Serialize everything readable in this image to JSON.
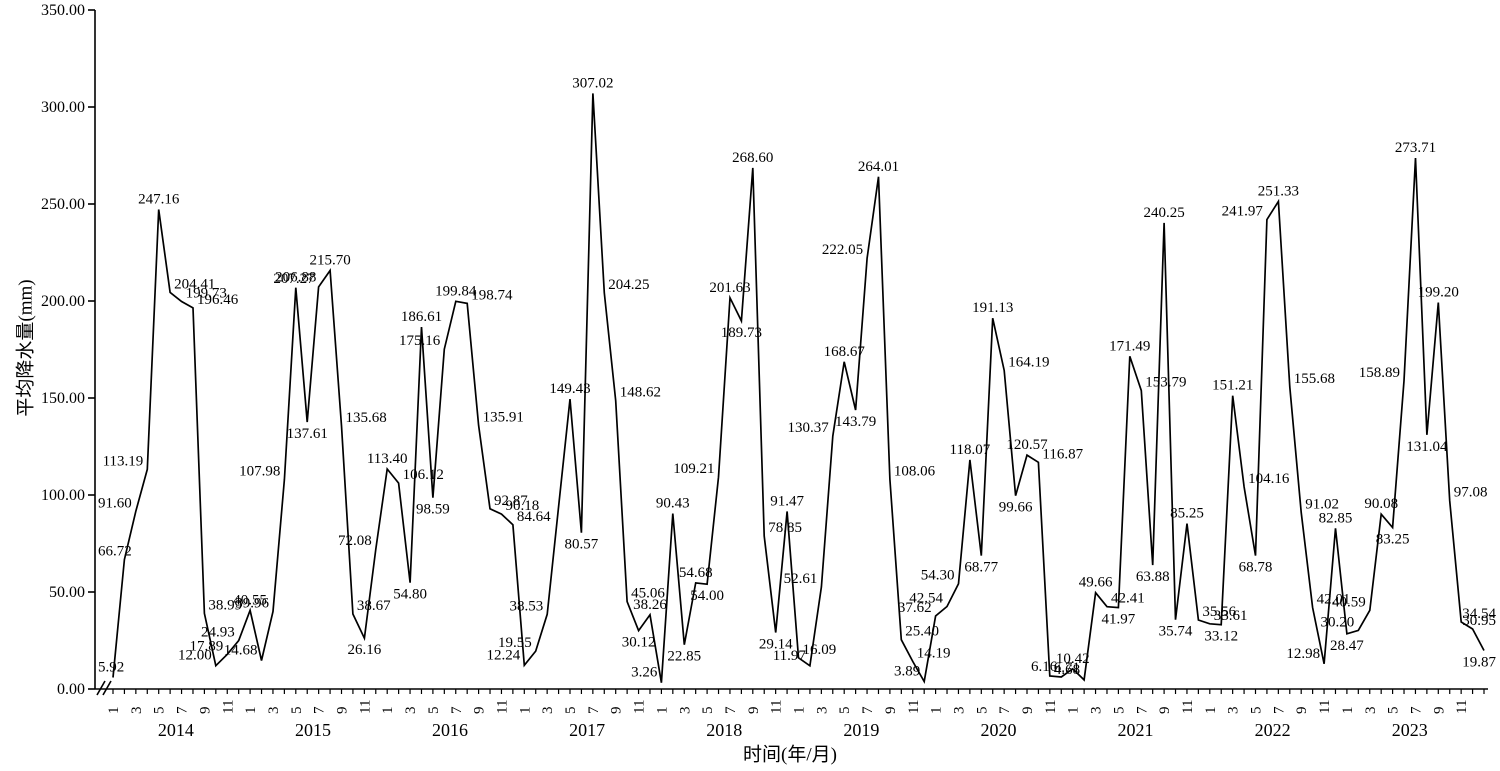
{
  "figure": {
    "background_color": "#ffffff",
    "ink_color": "#000000"
  },
  "chart_data": {
    "type": "line",
    "title": "",
    "xlabel": "时间(年/月)",
    "ylabel": "平均降水量(mm)",
    "ylim": [
      0,
      350
    ],
    "y_tick_labels": [
      "0.00",
      "50.00",
      "100.00",
      "150.00",
      "200.00",
      "250.00",
      "300.00",
      "350.00"
    ],
    "month_tick_labels": [
      "1",
      "3",
      "5",
      "7",
      "9",
      "11"
    ],
    "years": [
      "2014",
      "2015",
      "2016",
      "2017",
      "2018",
      "2019",
      "2020",
      "2021",
      "2022",
      "2023"
    ],
    "grid": false,
    "legend": false,
    "line_color": "#000000",
    "x_axis_break_after_origin": true,
    "values_by_year": {
      "2014": [
        5.92,
        66.72,
        91.6,
        113.19,
        247.16,
        204.41,
        199.73,
        196.46,
        38.99,
        12.0,
        17.89,
        24.93
      ],
      "2015": [
        40.55,
        14.68,
        39.96,
        107.98,
        206.88,
        137.61,
        207.27,
        215.7,
        135.68,
        38.67,
        26.16,
        72.08
      ],
      "2016": [
        113.4,
        106.12,
        54.8,
        186.61,
        98.59,
        175.16,
        199.84,
        198.74,
        135.91,
        92.87,
        90.18,
        84.64
      ],
      "2017": [
        12.24,
        19.55,
        38.53,
        94.0,
        149.43,
        80.57,
        307.02,
        204.25,
        148.62,
        45.06,
        30.12,
        38.26
      ],
      "2018": [
        3.26,
        90.43,
        22.85,
        54.68,
        54.0,
        109.21,
        201.63,
        189.73,
        268.6,
        78.85,
        29.14,
        91.47
      ],
      "2019": [
        16.09,
        11.97,
        52.61,
        130.37,
        168.67,
        143.79,
        222.05,
        264.01,
        108.06,
        25.4,
        14.19,
        3.89
      ],
      "2020": [
        37.62,
        42.54,
        54.3,
        118.07,
        68.77,
        191.13,
        164.19,
        99.66,
        120.57,
        116.87,
        6.71,
        6.16
      ],
      "2021": [
        10.42,
        4.68,
        49.66,
        42.41,
        41.97,
        171.49,
        153.79,
        63.88,
        240.25,
        35.74,
        85.25,
        35.56
      ],
      "2022": [
        33.61,
        33.12,
        151.21,
        104.16,
        68.78,
        241.97,
        251.33,
        155.68,
        91.02,
        42.01,
        12.98,
        82.85
      ],
      "2023": [
        28.47,
        30.2,
        40.59,
        90.08,
        83.25,
        158.89,
        273.71,
        131.04,
        199.2,
        97.08,
        34.54,
        30.95
      ]
    },
    "trailing_point_value": 19.87,
    "unlabeled_points": [
      {
        "year": "2017",
        "month_index": 3,
        "value": 94.0,
        "estimated": true
      }
    ]
  }
}
